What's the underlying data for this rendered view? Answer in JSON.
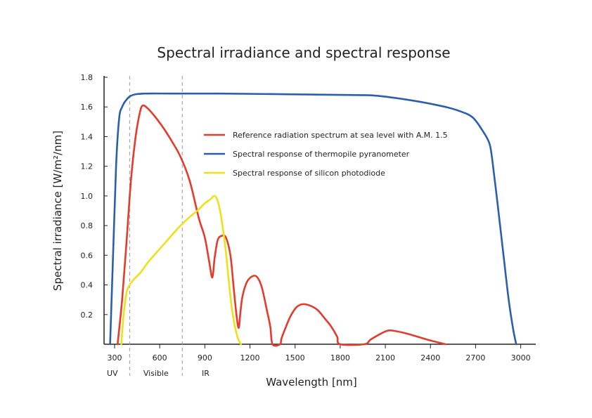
{
  "chart_data": {
    "type": "line",
    "title": "Spectral irradiance and spectral response",
    "xlabel": "Wavelength [nm]",
    "ylabel": "Spectral irradiance [W/m²/nm]",
    "xlim": [
      230,
      3100
    ],
    "ylim": [
      0,
      1.8
    ],
    "x_ticks": [
      300,
      600,
      900,
      1200,
      1500,
      1800,
      2100,
      2400,
      2700,
      3000
    ],
    "y_ticks": [
      0.2,
      0.4,
      0.6,
      0.8,
      1.0,
      1.2,
      1.4,
      1.6,
      1.8
    ],
    "grid": false,
    "legend_position": "center",
    "bands": {
      "dividers": [
        400,
        750
      ],
      "labels": [
        {
          "text": "UV",
          "x": 285
        },
        {
          "text": "Visible",
          "x": 575
        },
        {
          "text": "IR",
          "x": 905
        }
      ]
    },
    "series": [
      {
        "name": "Reference radiation spectrum at sea level with A.M. 1.5",
        "color": "#e53b2c",
        "x": [
          320,
          350,
          380,
          410,
          440,
          470,
          490,
          530,
          580,
          630,
          680,
          740,
          800,
          860,
          900,
          930,
          950,
          965,
          985,
          1010,
          1040,
          1070,
          1090,
          1110,
          1125,
          1135,
          1150,
          1180,
          1220,
          1250,
          1280,
          1310,
          1335,
          1350,
          1400,
          1410,
          1440,
          1470,
          1510,
          1550,
          1600,
          1650,
          1700,
          1740,
          1780,
          1800,
          1960,
          2000,
          2050,
          2110,
          2160,
          2250,
          2350,
          2420,
          2500
        ],
        "y": [
          0.0,
          0.3,
          0.7,
          1.12,
          1.4,
          1.57,
          1.61,
          1.58,
          1.52,
          1.45,
          1.37,
          1.26,
          1.1,
          0.85,
          0.72,
          0.55,
          0.45,
          0.58,
          0.7,
          0.73,
          0.72,
          0.6,
          0.4,
          0.2,
          0.11,
          0.2,
          0.32,
          0.42,
          0.46,
          0.45,
          0.38,
          0.24,
          0.12,
          0.0,
          0.0,
          0.04,
          0.12,
          0.19,
          0.25,
          0.27,
          0.26,
          0.23,
          0.17,
          0.12,
          0.05,
          0.0,
          0.0,
          0.03,
          0.06,
          0.09,
          0.09,
          0.07,
          0.04,
          0.02,
          0.0
        ]
      },
      {
        "name": "Spectral response of thermopile pyranometer",
        "color": "#2b5fae",
        "x": [
          270,
          290,
          310,
          330,
          350,
          380,
          420,
          500,
          700,
          1000,
          1500,
          1900,
          2050,
          2300,
          2500,
          2600,
          2680,
          2740,
          2790,
          2810,
          2840,
          2880,
          2920,
          2950,
          2970
        ],
        "y": [
          0.0,
          0.6,
          1.2,
          1.52,
          1.6,
          1.65,
          1.68,
          1.69,
          1.69,
          1.69,
          1.685,
          1.68,
          1.675,
          1.64,
          1.6,
          1.57,
          1.53,
          1.45,
          1.36,
          1.25,
          1.0,
          0.65,
          0.3,
          0.1,
          0.0
        ]
      },
      {
        "name": "Spectral response of silicon photodiode",
        "color": "#ede11a",
        "x": [
          345,
          360,
          380,
          400,
          430,
          470,
          520,
          580,
          650,
          720,
          790,
          850,
          900,
          940,
          960,
          975,
          990,
          1005,
          1020,
          1040,
          1060,
          1080,
          1100,
          1120,
          1140
        ],
        "y": [
          0.0,
          0.2,
          0.35,
          0.4,
          0.44,
          0.48,
          0.55,
          0.62,
          0.7,
          0.78,
          0.85,
          0.9,
          0.95,
          0.98,
          1.0,
          0.99,
          0.95,
          0.88,
          0.78,
          0.62,
          0.42,
          0.24,
          0.12,
          0.04,
          0.0
        ]
      }
    ]
  }
}
